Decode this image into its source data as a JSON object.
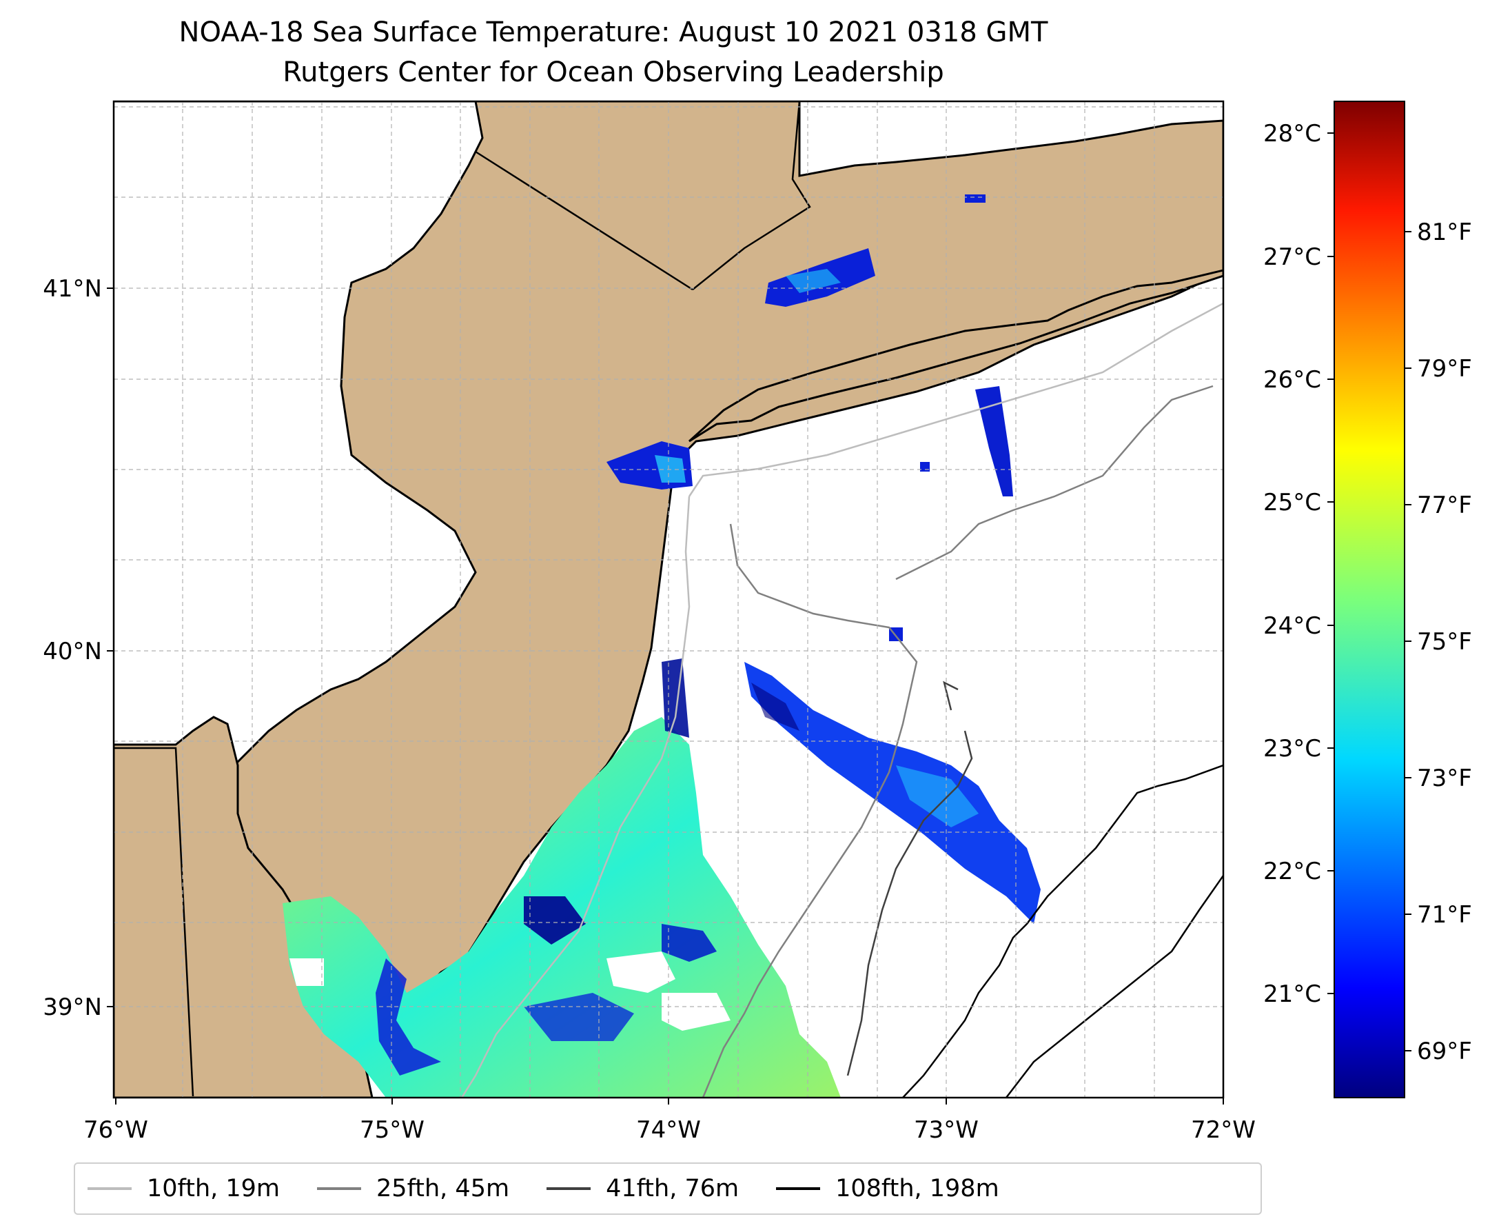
{
  "title": {
    "line1": "NOAA-18 Sea Surface Temperature: August 10 2021 0318 GMT",
    "line2": "Rutgers Center for Ocean Observing Leadership"
  },
  "axes": {
    "lon_ticks": [
      "76°W",
      "75°W",
      "74°W",
      "73°W",
      "72°W"
    ],
    "lat_ticks": [
      "41°N",
      "40°N",
      "39°N"
    ]
  },
  "colorbar": {
    "celsius_ticks": [
      "28°C",
      "27°C",
      "26°C",
      "25°C",
      "24°C",
      "23°C",
      "22°C",
      "21°C"
    ],
    "fahrenheit_ticks": [
      "81°F",
      "79°F",
      "77°F",
      "75°F",
      "73°F",
      "71°F",
      "69°F"
    ],
    "colormap": "jet"
  },
  "legend": [
    {
      "label": "10fth, 19m",
      "color": "#bdbdbd"
    },
    {
      "label": "25fth, 45m",
      "color": "#808080"
    },
    {
      "label": "41fth, 76m",
      "color": "#404040"
    },
    {
      "label": "108fth, 198m",
      "color": "#000000"
    }
  ],
  "colors": {
    "land": "#d2b48c",
    "ocean": "#ffffff",
    "grid": "#b0b0b0"
  }
}
